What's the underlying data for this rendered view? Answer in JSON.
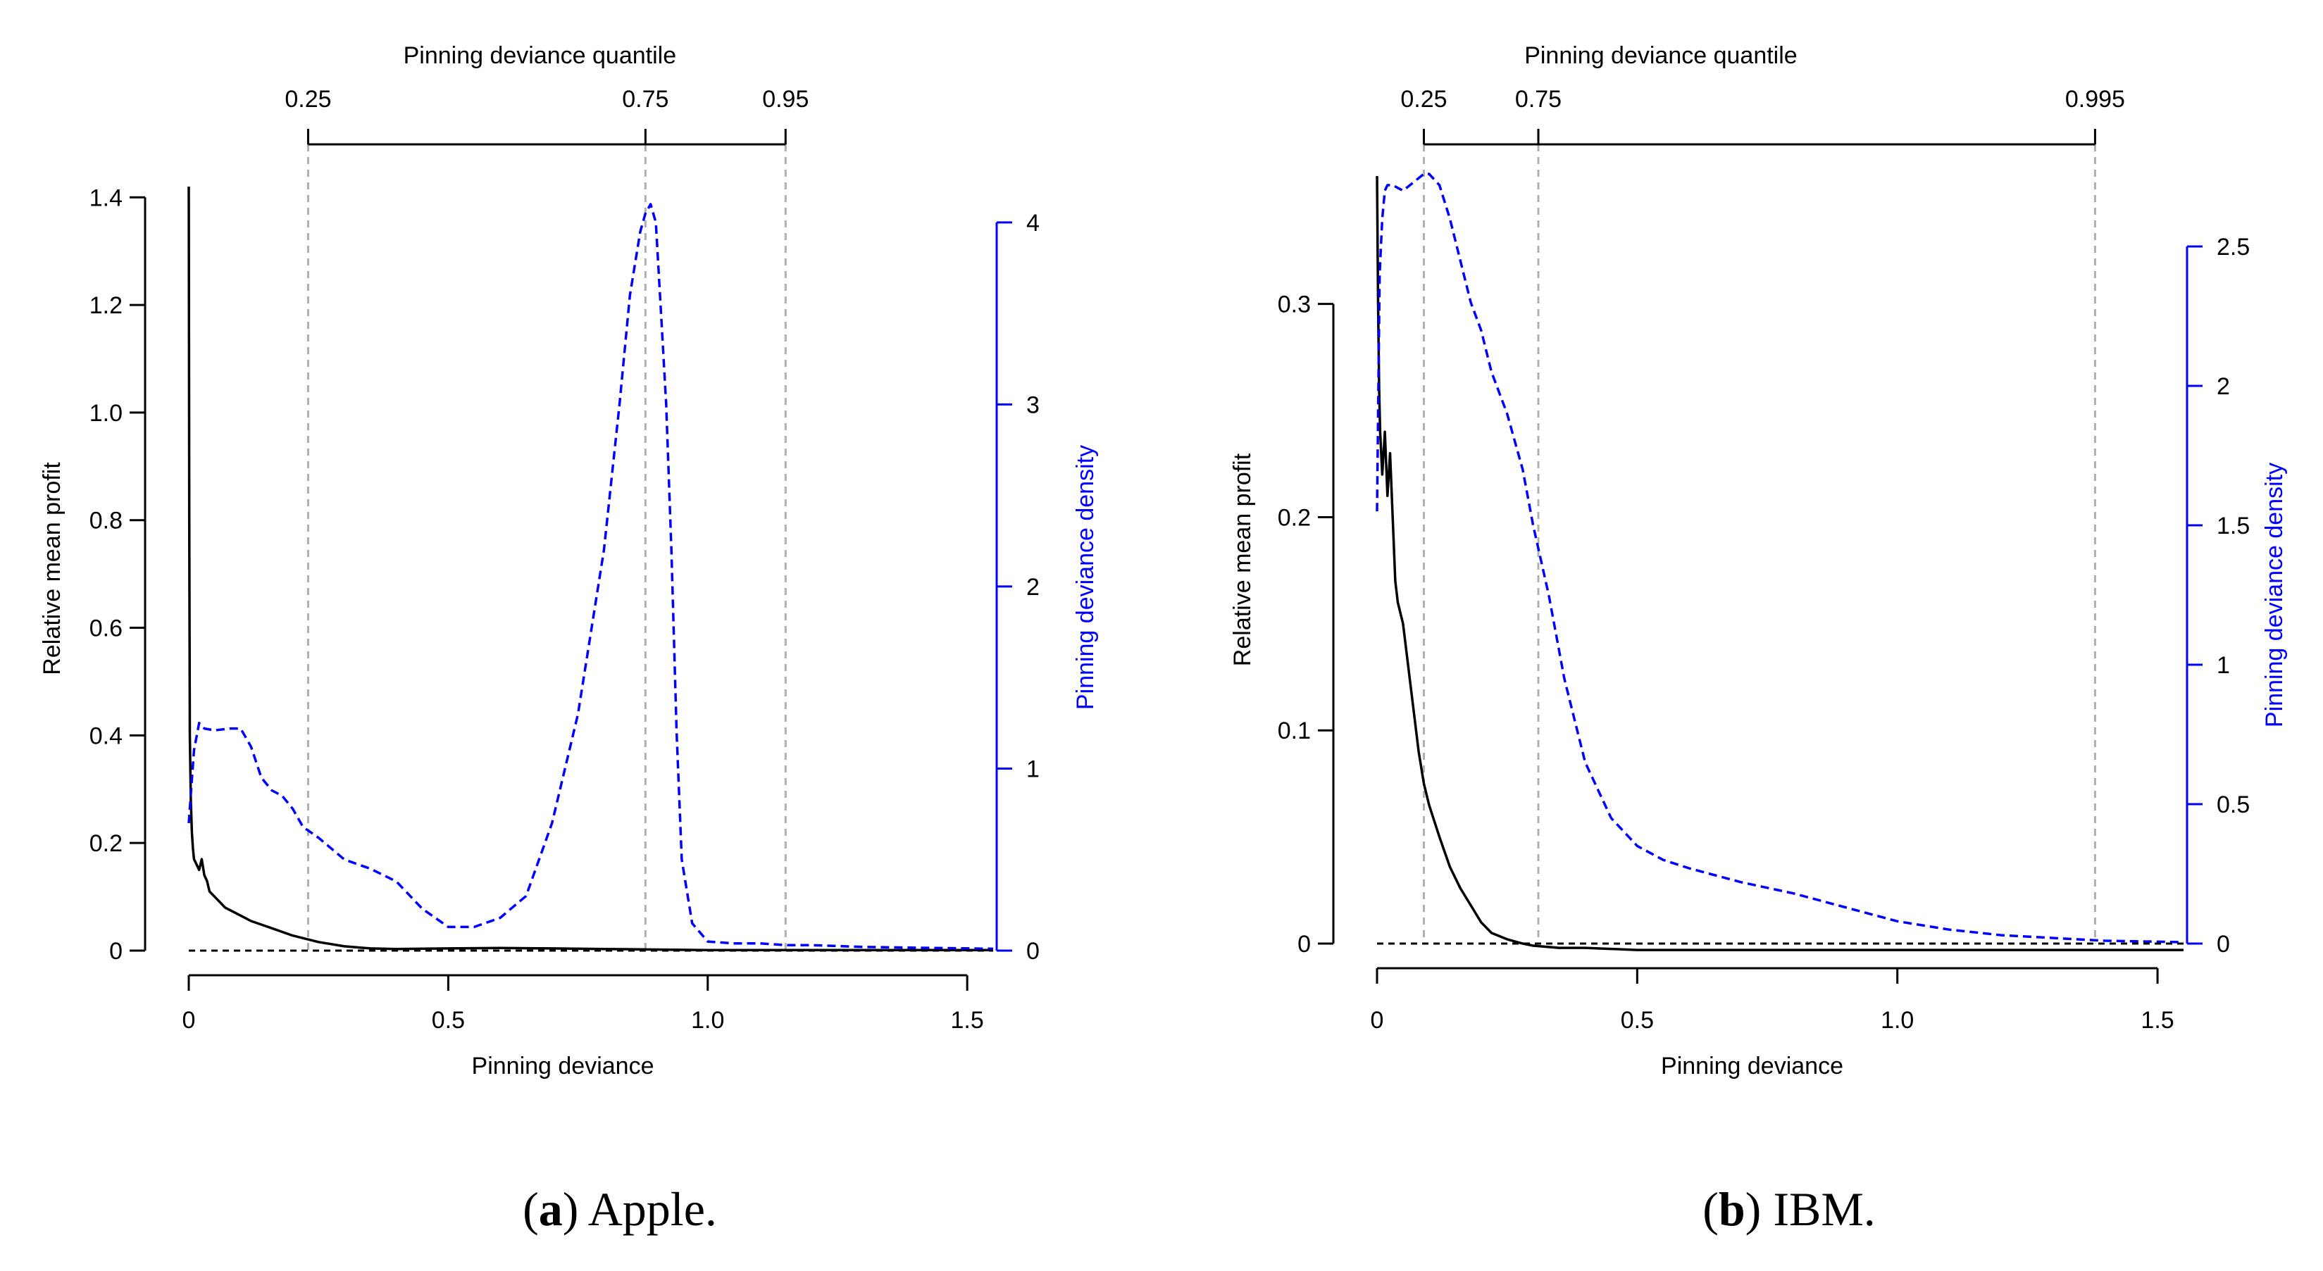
{
  "chart_data": [
    {
      "type": "line",
      "caption": {
        "letter": "a",
        "text": "Apple."
      },
      "xlabel": "Pinning deviance",
      "ylabel_left": "Relative mean profit",
      "ylabel_right": "Pinning deviance density",
      "top_axis_label": "Pinning deviance quantile",
      "xlim": [
        0,
        1.55
      ],
      "xticks": [
        {
          "v": 0,
          "label": "0"
        },
        {
          "v": 0.5,
          "label": "0.5"
        },
        {
          "v": 1.0,
          "label": "1.0"
        },
        {
          "v": 1.5,
          "label": "1.5"
        }
      ],
      "ylim_left": [
        0,
        1.42
      ],
      "yticks_left": [
        {
          "v": 0,
          "label": "0"
        },
        {
          "v": 0.2,
          "label": "0.2"
        },
        {
          "v": 0.4,
          "label": "0.4"
        },
        {
          "v": 0.6,
          "label": "0.6"
        },
        {
          "v": 0.8,
          "label": "0.8"
        },
        {
          "v": 1.0,
          "label": "1.0"
        },
        {
          "v": 1.2,
          "label": "1.2"
        },
        {
          "v": 1.4,
          "label": "1.4"
        }
      ],
      "ylim_right": [
        0,
        4.1
      ],
      "yticks_right": [
        {
          "v": 0,
          "label": "0"
        },
        {
          "v": 1,
          "label": "1"
        },
        {
          "v": 2,
          "label": "2"
        },
        {
          "v": 3,
          "label": "3"
        },
        {
          "v": 4,
          "label": "4"
        }
      ],
      "quantiles": [
        {
          "label": "0.25",
          "x": 0.23
        },
        {
          "label": "0.75",
          "x": 0.88
        },
        {
          "label": "0.95",
          "x": 1.15
        }
      ],
      "series": [
        {
          "role": "relative-mean-profit",
          "color": "#000000",
          "style": "solid",
          "axis": "left",
          "x": [
            0,
            0.001,
            0.002,
            0.004,
            0.006,
            0.008,
            0.01,
            0.015,
            0.02,
            0.025,
            0.03,
            0.035,
            0.04,
            0.05,
            0.06,
            0.07,
            0.08,
            0.1,
            0.12,
            0.15,
            0.2,
            0.25,
            0.3,
            0.35,
            0.4,
            0.5,
            0.6,
            0.7,
            0.8,
            0.9,
            1.0,
            1.2,
            1.55
          ],
          "y": [
            1.42,
            0.8,
            0.4,
            0.28,
            0.22,
            0.19,
            0.17,
            0.16,
            0.15,
            0.17,
            0.14,
            0.13,
            0.11,
            0.1,
            0.09,
            0.08,
            0.075,
            0.065,
            0.055,
            0.045,
            0.028,
            0.016,
            0.008,
            0.004,
            0.003,
            0.004,
            0.005,
            0.004,
            0.003,
            0.002,
            0.001,
            0.001,
            0.001
          ]
        },
        {
          "role": "pinning-deviance-density",
          "color": "#0000ff",
          "style": "dashed",
          "axis": "right",
          "x": [
            0,
            0.01,
            0.02,
            0.03,
            0.05,
            0.08,
            0.1,
            0.12,
            0.14,
            0.16,
            0.18,
            0.2,
            0.22,
            0.25,
            0.3,
            0.35,
            0.4,
            0.45,
            0.5,
            0.55,
            0.6,
            0.65,
            0.7,
            0.75,
            0.8,
            0.83,
            0.85,
            0.87,
            0.88,
            0.89,
            0.9,
            0.91,
            0.92,
            0.93,
            0.94,
            0.95,
            0.97,
            1.0,
            1.05,
            1.1,
            1.15,
            1.2,
            1.3,
            1.55
          ],
          "y": [
            0.7,
            1.1,
            1.25,
            1.22,
            1.21,
            1.22,
            1.22,
            1.12,
            0.95,
            0.88,
            0.85,
            0.78,
            0.68,
            0.62,
            0.5,
            0.45,
            0.38,
            0.23,
            0.13,
            0.13,
            0.18,
            0.3,
            0.7,
            1.3,
            2.2,
            3.0,
            3.6,
            3.95,
            4.05,
            4.1,
            4.0,
            3.5,
            3.0,
            2.2,
            1.2,
            0.5,
            0.15,
            0.05,
            0.04,
            0.04,
            0.03,
            0.03,
            0.02,
            0.01
          ]
        },
        {
          "role": "zero-reference",
          "color": "#000000",
          "style": "dashed",
          "axis": "left",
          "x": [
            0,
            1.55
          ],
          "y": [
            0,
            0
          ]
        }
      ]
    },
    {
      "type": "line",
      "caption": {
        "letter": "b",
        "text": "IBM."
      },
      "xlabel": "Pinning deviance",
      "ylabel_left": "Relative mean profit",
      "ylabel_right": "Pinning deviance density",
      "top_axis_label": "Pinning deviance quantile",
      "xlim": [
        0,
        1.55
      ],
      "xticks": [
        {
          "v": 0,
          "label": "0"
        },
        {
          "v": 0.5,
          "label": "0.5"
        },
        {
          "v": 1.0,
          "label": "1.0"
        },
        {
          "v": 1.5,
          "label": "1.5"
        }
      ],
      "ylim_left": [
        0,
        0.36
      ],
      "yticks_left": [
        {
          "v": 0,
          "label": "0"
        },
        {
          "v": 0.1,
          "label": "0.1"
        },
        {
          "v": 0.2,
          "label": "0.2"
        },
        {
          "v": 0.3,
          "label": "0.3"
        }
      ],
      "ylim_right": [
        0,
        2.5
      ],
      "yticks_right": [
        {
          "v": 0,
          "label": "0"
        },
        {
          "v": 0.5,
          "label": "0.5"
        },
        {
          "v": 1,
          "label": "1"
        },
        {
          "v": 1.5,
          "label": "1.5"
        },
        {
          "v": 2,
          "label": "2"
        },
        {
          "v": 2.5,
          "label": "2.5"
        }
      ],
      "quantiles": [
        {
          "label": "0.25",
          "x": 0.09
        },
        {
          "label": "0.75",
          "x": 0.31
        },
        {
          "label": "0.995",
          "x": 1.38
        }
      ],
      "series": [
        {
          "role": "relative-mean-profit",
          "color": "#000000",
          "style": "solid",
          "axis": "left",
          "x": [
            0,
            0.002,
            0.004,
            0.006,
            0.008,
            0.01,
            0.015,
            0.02,
            0.025,
            0.03,
            0.035,
            0.04,
            0.05,
            0.06,
            0.07,
            0.08,
            0.09,
            0.1,
            0.12,
            0.14,
            0.16,
            0.18,
            0.2,
            0.22,
            0.25,
            0.28,
            0.3,
            0.35,
            0.4,
            0.5,
            0.7,
            1.0,
            1.55
          ],
          "y": [
            0.36,
            0.3,
            0.26,
            0.24,
            0.23,
            0.22,
            0.24,
            0.21,
            0.23,
            0.2,
            0.17,
            0.16,
            0.15,
            0.13,
            0.11,
            0.09,
            0.075,
            0.065,
            0.05,
            0.036,
            0.026,
            0.018,
            0.01,
            0.005,
            0.002,
            0.0,
            -0.001,
            -0.002,
            -0.002,
            -0.003,
            -0.003,
            -0.003,
            -0.003
          ]
        },
        {
          "role": "pinning-deviance-density",
          "color": "#0000ff",
          "style": "dashed",
          "axis": "right",
          "x": [
            0,
            0.005,
            0.01,
            0.015,
            0.02,
            0.03,
            0.05,
            0.07,
            0.09,
            0.1,
            0.12,
            0.14,
            0.16,
            0.18,
            0.2,
            0.22,
            0.25,
            0.28,
            0.3,
            0.33,
            0.36,
            0.4,
            0.45,
            0.5,
            0.55,
            0.6,
            0.7,
            0.8,
            0.9,
            1.0,
            1.1,
            1.2,
            1.3,
            1.4,
            1.55
          ],
          "y": [
            1.55,
            2.4,
            2.6,
            2.7,
            2.72,
            2.72,
            2.7,
            2.73,
            2.76,
            2.76,
            2.72,
            2.6,
            2.45,
            2.3,
            2.2,
            2.05,
            1.9,
            1.7,
            1.5,
            1.25,
            0.95,
            0.65,
            0.45,
            0.35,
            0.3,
            0.27,
            0.22,
            0.18,
            0.13,
            0.08,
            0.05,
            0.03,
            0.02,
            0.01,
            0.005
          ]
        },
        {
          "role": "zero-reference",
          "color": "#000000",
          "style": "dashed",
          "axis": "left",
          "x": [
            0,
            1.55
          ],
          "y": [
            0,
            0
          ]
        }
      ]
    }
  ]
}
